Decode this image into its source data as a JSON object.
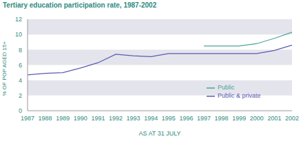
{
  "chart_data": {
    "type": "line",
    "title": "Tertiary education participation rate, 1987-2002",
    "x_label": "AS AT 31 JULY",
    "y_label": "% OF POP AGED 15+",
    "categories": [
      "1987",
      "1988",
      "1989",
      "1990",
      "1991",
      "1992",
      "1993",
      "1994",
      "1995",
      "1996",
      "1997",
      "1998",
      "1999",
      "2000",
      "2001",
      "2002"
    ],
    "series": [
      {
        "name": "Public",
        "color": "#4aa596",
        "values": [
          null,
          null,
          null,
          null,
          null,
          null,
          null,
          null,
          null,
          null,
          8.5,
          8.5,
          8.5,
          8.8,
          9.5,
          10.3
        ]
      },
      {
        "name": "Public & private",
        "color": "#5a5ab4",
        "values": [
          4.7,
          4.9,
          5.0,
          5.6,
          6.3,
          7.4,
          7.2,
          7.1,
          7.5,
          7.5,
          7.5,
          7.5,
          7.5,
          7.5,
          7.9,
          8.6
        ]
      }
    ],
    "ylim": [
      0,
      12
    ],
    "yticks": [
      0,
      2,
      4,
      6,
      8,
      10,
      12
    ],
    "grid": true,
    "legend": "lower right"
  }
}
